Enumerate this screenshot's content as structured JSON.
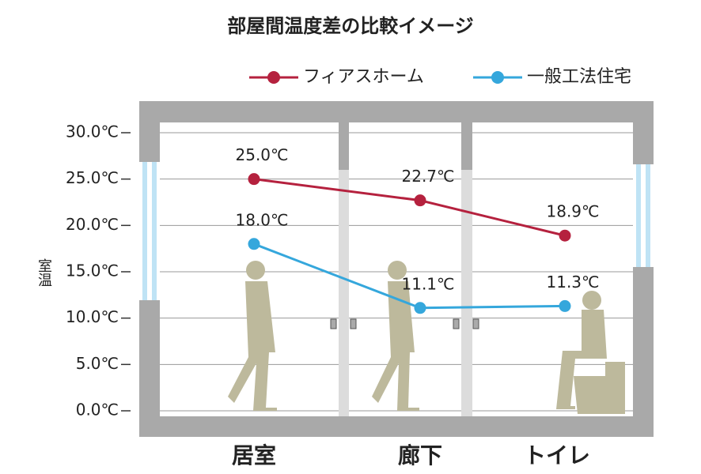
{
  "chart_data": {
    "type": "line",
    "title": "部屋間温度差の比較イメージ",
    "y_label": "室温",
    "categories": [
      "居室",
      "廊下",
      "トイレ"
    ],
    "series": [
      {
        "name": "フィアスホーム",
        "color": "#b5213e",
        "values": [
          25.0,
          22.7,
          18.9
        ],
        "value_labels": [
          "25.0℃",
          "22.7℃",
          "18.9℃"
        ]
      },
      {
        "name": "一般工法住宅",
        "color": "#35a7dc",
        "values": [
          18.0,
          11.1,
          11.3
        ],
        "value_labels": [
          "18.0℃",
          "11.1℃",
          "11.3℃"
        ]
      }
    ],
    "ylim": [
      0,
      30
    ],
    "yticks": [
      {
        "value": 0,
        "label": "0.0℃"
      },
      {
        "value": 5,
        "label": "5.0℃"
      },
      {
        "value": 10,
        "label": "10.0℃"
      },
      {
        "value": 15,
        "label": "15.0℃"
      },
      {
        "value": 20,
        "label": "20.0℃"
      },
      {
        "value": 25,
        "label": "25.0℃"
      },
      {
        "value": 30,
        "label": "30.0℃"
      }
    ],
    "grid": true
  }
}
